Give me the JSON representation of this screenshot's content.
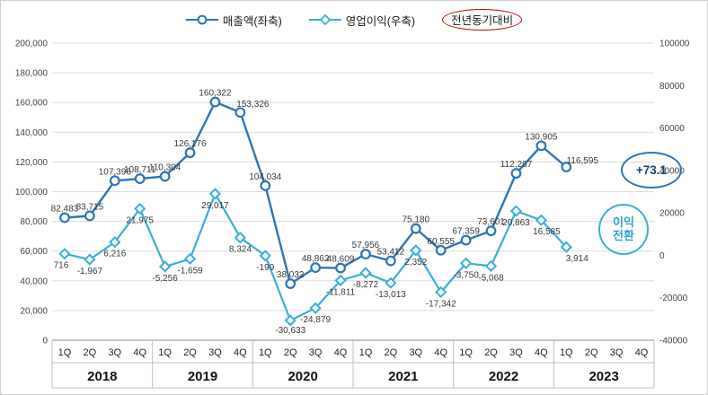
{
  "chart_data": {
    "type": "line",
    "title": "",
    "legend": [
      {
        "label": "매출액(좌축)",
        "marker": "circle",
        "color": "#2e75b6",
        "circled": false
      },
      {
        "label": "영업이익(우축)",
        "marker": "diamond",
        "color": "#3aaed8",
        "circled": false
      },
      {
        "label": "전년동기대비",
        "marker": "none",
        "color": "#1a1a1a",
        "circled": true,
        "circle_color": "#c00000"
      }
    ],
    "categories": [
      "1Q",
      "2Q",
      "3Q",
      "4Q",
      "1Q",
      "2Q",
      "3Q",
      "4Q",
      "1Q",
      "2Q",
      "3Q",
      "4Q",
      "1Q",
      "2Q",
      "3Q",
      "4Q",
      "1Q",
      "2Q",
      "3Q",
      "4Q",
      "1Q",
      "2Q",
      "3Q",
      "4Q"
    ],
    "year_groups": [
      {
        "label": "2018",
        "span": 4
      },
      {
        "label": "2019",
        "span": 4
      },
      {
        "label": "2020",
        "span": 4
      },
      {
        "label": "2021",
        "span": 4
      },
      {
        "label": "2022",
        "span": 4
      },
      {
        "label": "2023",
        "span": 4
      }
    ],
    "left_axis": {
      "min": 0,
      "max": 200000,
      "ticks": [
        "200,000",
        "180,000",
        "160,000",
        "140,000",
        "120,000",
        "100,000",
        "80,000",
        "60,000",
        "40,000",
        "20,000",
        "0"
      ]
    },
    "right_axis": {
      "min": -40000,
      "max": 100000,
      "ticks": [
        "100000",
        "80000",
        "60000",
        "40000",
        "20000",
        "0",
        "-20000",
        "-40000"
      ]
    },
    "series": [
      {
        "name": "매출액(좌축)",
        "axis": "left",
        "color": "#2e75b6",
        "marker": "circle",
        "values": [
          82483,
          83715,
          107396,
          108711,
          110304,
          126176,
          160322,
          153326,
          104034,
          38032,
          48862,
          48609,
          57956,
          53412,
          75180,
          60555,
          67359,
          73601,
          112287,
          130905,
          116595,
          null,
          null,
          null
        ],
        "labels": [
          "82,483",
          "83,715",
          "107,396",
          "108,711",
          "110,304",
          "126,176",
          "160,322",
          "153,326",
          "104,034",
          "38,032",
          "48,862",
          "48,609",
          "57,956",
          "53,412",
          "75,180",
          "60,555",
          "67,359",
          "73,601",
          "112,287",
          "130,905",
          "116,595",
          "",
          "",
          ""
        ]
      },
      {
        "name": "영업이익(우축)",
        "axis": "right",
        "color": "#3aaed8",
        "marker": "diamond",
        "values": [
          716,
          -1967,
          6216,
          21975,
          -5256,
          -1659,
          29017,
          8324,
          -199,
          -30633,
          -24879,
          -11811,
          -8272,
          -13013,
          2352,
          -17342,
          -3750,
          -5068,
          20863,
          16585,
          3914,
          null,
          null,
          null
        ],
        "labels": [
          "716",
          "-1,967",
          "6,216",
          "21,975",
          "-5,256",
          "-1,659",
          "29,017",
          "8,324",
          "-199",
          "-30,633",
          "-24,879",
          "-11,811",
          "-8,272",
          "-13,013",
          "2,352",
          "-17,342",
          "-3,750",
          "-5,068",
          "20,863",
          "16,585",
          "3,914",
          "",
          "",
          ""
        ]
      }
    ],
    "annotations": [
      {
        "text": "+73.1",
        "meaning": "yoy-growth"
      },
      {
        "text": "이익 전환",
        "lines": [
          "이익",
          "전환"
        ],
        "meaning": "profit-turnaround"
      }
    ],
    "grid": true,
    "legend_position": "top"
  }
}
